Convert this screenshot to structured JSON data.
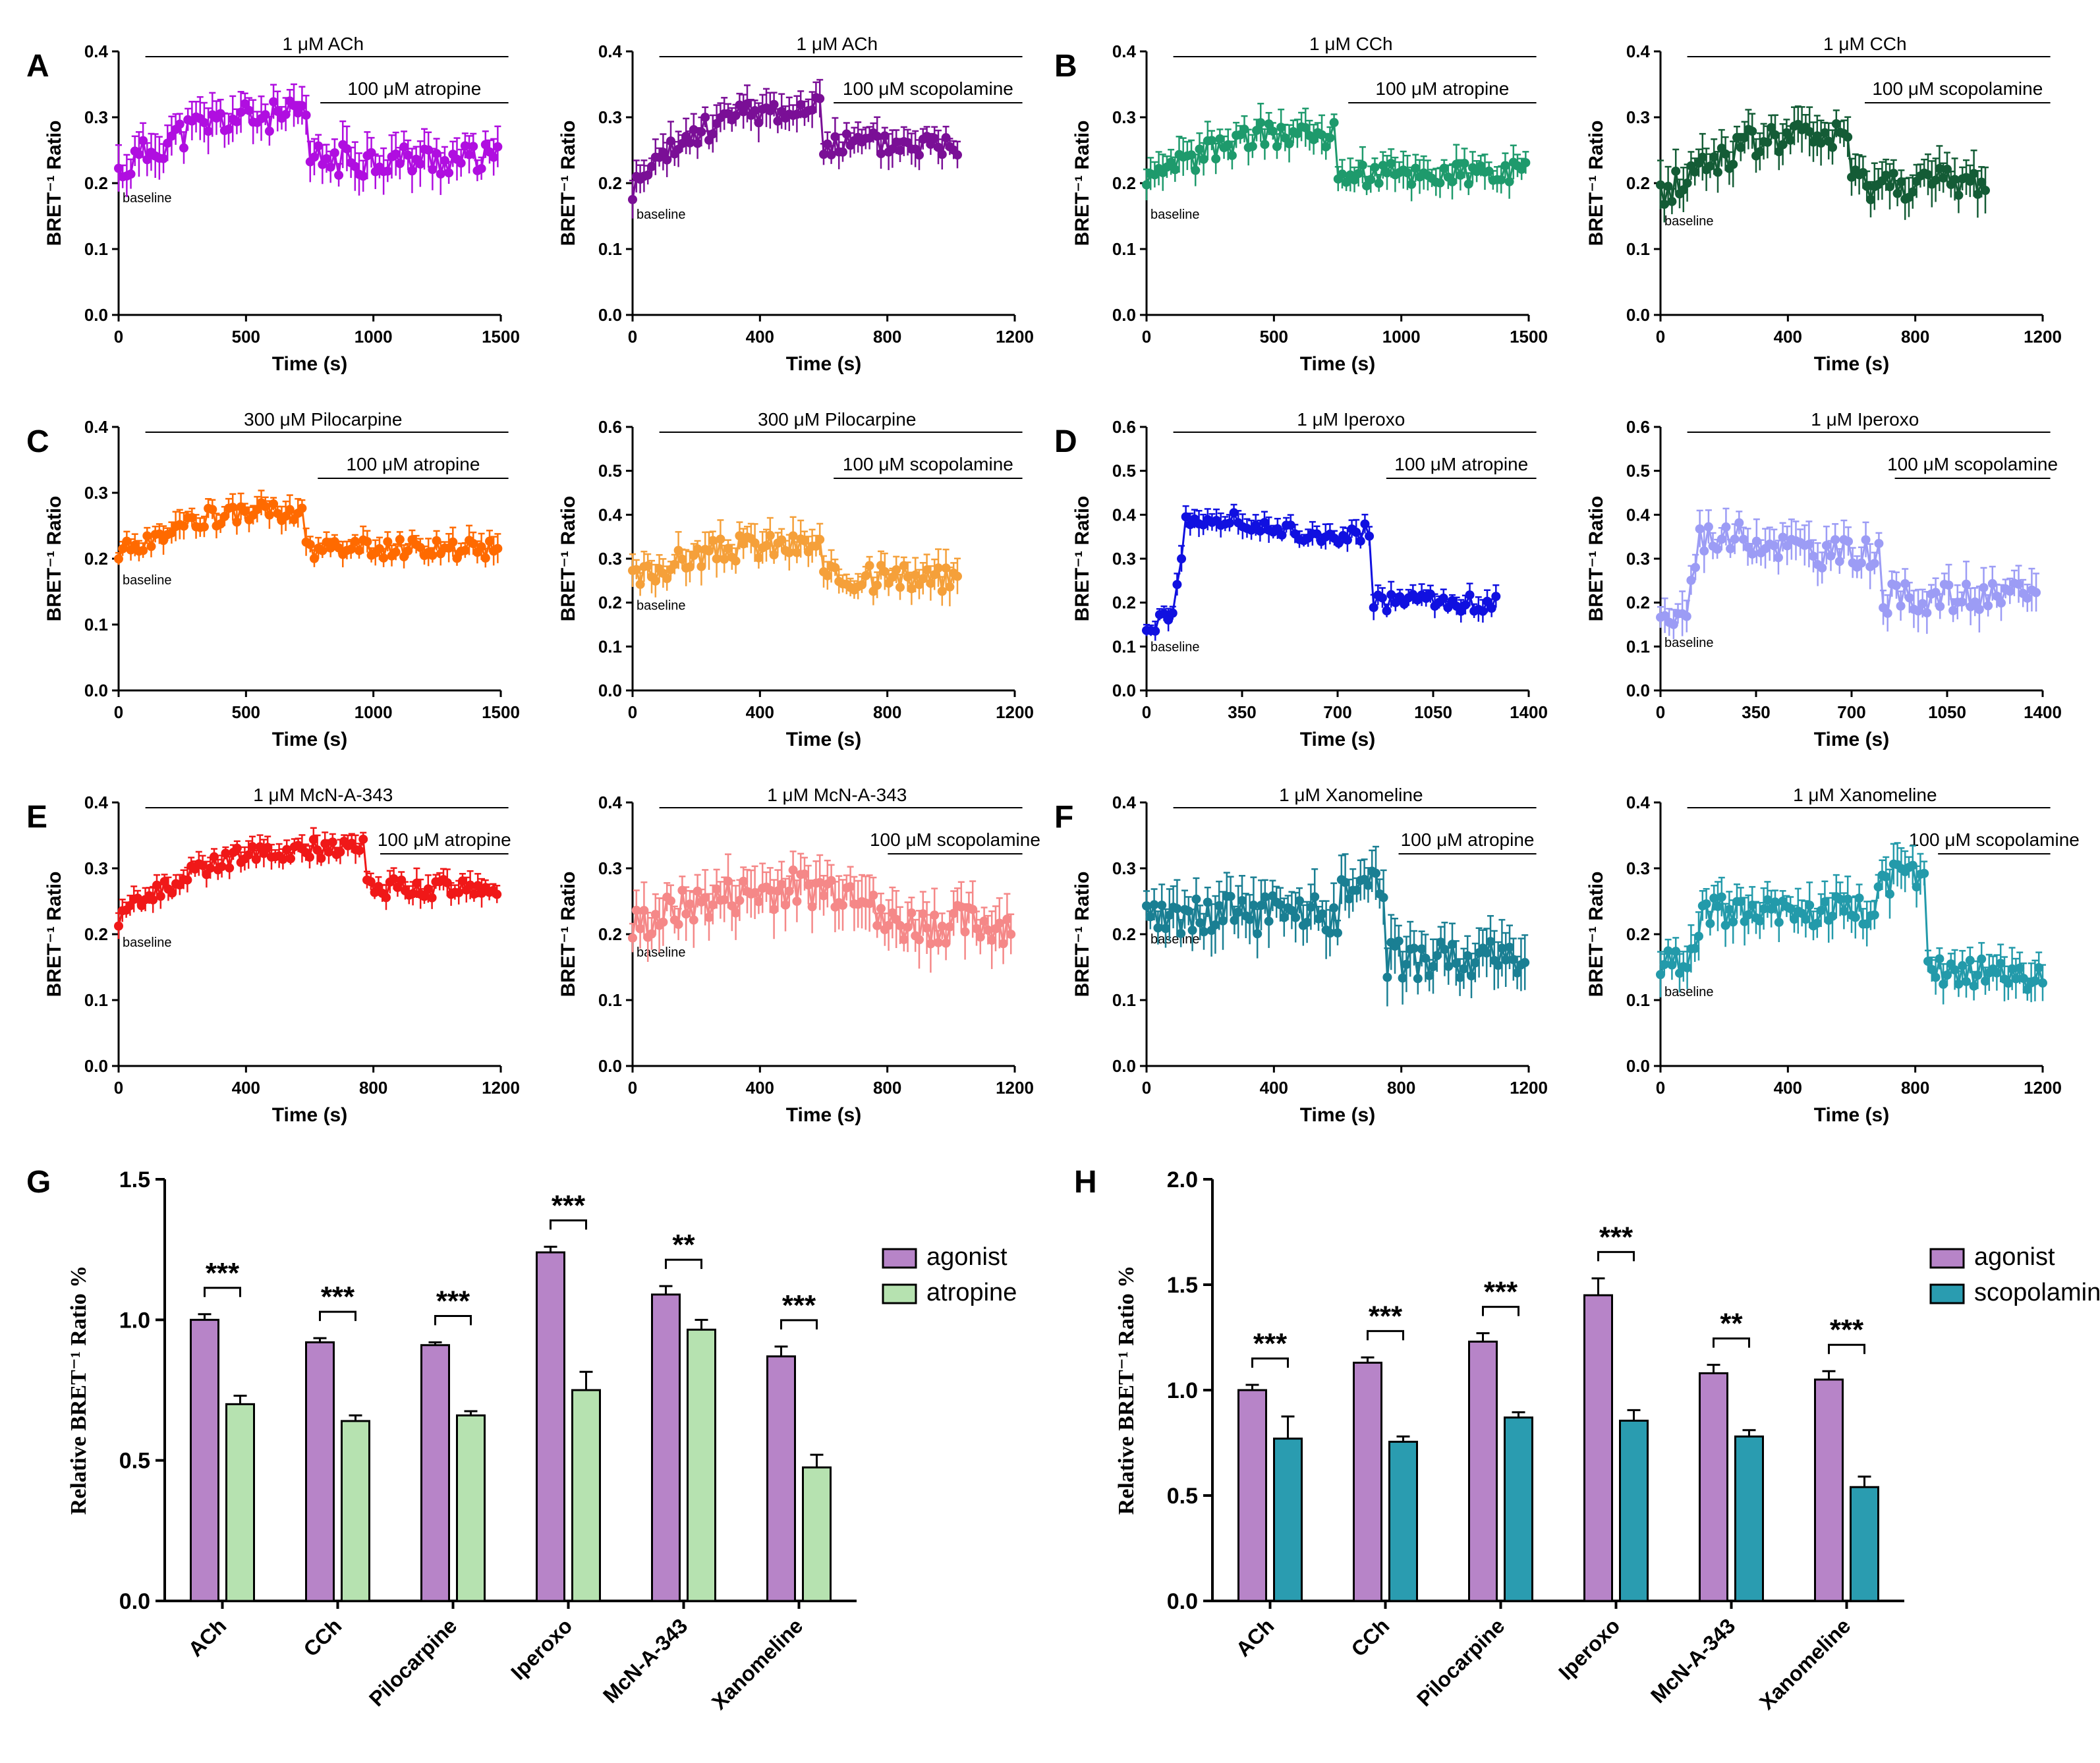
{
  "figure": {
    "letters": [
      "A",
      "B",
      "C",
      "D",
      "E",
      "F",
      "G",
      "H"
    ],
    "ylabel_time": "BRET⁻¹ Ratio",
    "xlabel_time": "Time (s)",
    "baseline_label": "baseline"
  },
  "chart_data": [
    {
      "id": "A1",
      "type": "line",
      "letter": "A",
      "color": "#b00ee0",
      "xlim": [
        0,
        1500
      ],
      "xticks": [
        0,
        500,
        1000,
        1500
      ],
      "ylim": [
        0,
        0.4
      ],
      "yticks": [
        0.0,
        0.1,
        0.2,
        0.3,
        0.4
      ],
      "agonist_label": "1 μM ACh",
      "antagonist_label": "100 μM atropine",
      "xlabel": "Time (s)",
      "ylabel": "BRET⁻¹ Ratio",
      "baseline": 0.215,
      "plateau": 0.3,
      "after": 0.235,
      "switch": 740,
      "end": 1490,
      "onset": "slow",
      "noise": 0.025
    },
    {
      "id": "A2",
      "type": "line",
      "letter": "",
      "color": "#7a0f96",
      "xlim": [
        0,
        1200
      ],
      "xticks": [
        0,
        400,
        800,
        1200
      ],
      "ylim": [
        0,
        0.4
      ],
      "yticks": [
        0.0,
        0.1,
        0.2,
        0.3,
        0.4
      ],
      "agonist_label": "1 μM ACh",
      "antagonist_label": "100 μM scopolamine",
      "xlabel": "Time (s)",
      "ylabel": "BRET⁻¹ Ratio",
      "baseline": 0.19,
      "plateau": 0.31,
      "after": 0.26,
      "switch": 590,
      "end": 1020,
      "onset": "slow",
      "noise": 0.02
    },
    {
      "id": "B1",
      "type": "line",
      "letter": "B",
      "color": "#1e9a6c",
      "xlim": [
        0,
        1500
      ],
      "xticks": [
        0,
        500,
        1000,
        1500
      ],
      "ylim": [
        0,
        0.4
      ],
      "yticks": [
        0.0,
        0.1,
        0.2,
        0.3,
        0.4
      ],
      "agonist_label": "1 μM CCh",
      "antagonist_label": "100 μM atropine",
      "xlabel": "Time (s)",
      "ylabel": "BRET⁻¹ Ratio",
      "baseline": 0.19,
      "plateau": 0.275,
      "after": 0.215,
      "switch": 740,
      "end": 1490,
      "onset": "slow",
      "noise": 0.02
    },
    {
      "id": "B2",
      "type": "line",
      "letter": "",
      "color": "#145c36",
      "xlim": [
        0,
        1200
      ],
      "xticks": [
        0,
        400,
        800,
        1200
      ],
      "ylim": [
        0,
        0.4
      ],
      "yticks": [
        0.0,
        0.1,
        0.2,
        0.3,
        0.4
      ],
      "agonist_label": "1 μM CCh",
      "antagonist_label": "100 μM scopolamine",
      "xlabel": "Time (s)",
      "ylabel": "BRET⁻¹ Ratio",
      "baseline": 0.18,
      "plateau": 0.27,
      "after": 0.2,
      "switch": 600,
      "end": 1020,
      "onset": "slow",
      "noise": 0.025
    },
    {
      "id": "C1",
      "type": "line",
      "letter": "C",
      "color": "#ff6a00",
      "xlim": [
        0,
        1500
      ],
      "xticks": [
        0,
        500,
        1000,
        1500
      ],
      "ylim": [
        0,
        0.4
      ],
      "yticks": [
        0.0,
        0.1,
        0.2,
        0.3,
        0.4
      ],
      "agonist_label": "300 μM Pilocarpine",
      "antagonist_label": "100 μM atropine",
      "xlabel": "Time (s)",
      "ylabel": "BRET⁻¹ Ratio",
      "baseline": 0.205,
      "plateau": 0.27,
      "after": 0.215,
      "switch": 730,
      "end": 1490,
      "onset": "slow",
      "noise": 0.015
    },
    {
      "id": "C2",
      "type": "line",
      "letter": "",
      "color": "#f5a03a",
      "xlim": [
        0,
        1200
      ],
      "xticks": [
        0,
        400,
        800,
        1200
      ],
      "ylim": [
        0,
        0.6
      ],
      "yticks": [
        0.0,
        0.1,
        0.2,
        0.3,
        0.4,
        0.5,
        0.6
      ],
      "agonist_label": "300 μM  Pilocarpine",
      "antagonist_label": "100 μM scopolamine",
      "xlabel": "Time (s)",
      "ylabel": "BRET⁻¹ Ratio",
      "baseline": 0.25,
      "plateau": 0.33,
      "after": 0.255,
      "switch": 590,
      "end": 1020,
      "onset": "slow",
      "noise": 0.03
    },
    {
      "id": "D1",
      "type": "line",
      "letter": "D",
      "color": "#1010e0",
      "xlim": [
        0,
        1400
      ],
      "xticks": [
        0,
        350,
        700,
        1050,
        1400
      ],
      "ylim": [
        0,
        0.6
      ],
      "yticks": [
        0.0,
        0.1,
        0.2,
        0.3,
        0.4,
        0.5,
        0.6
      ],
      "agonist_label": "1 μM Iperoxo",
      "antagonist_label": "100 μM atropine",
      "xlabel": "Time (s)",
      "ylabel": "BRET⁻¹ Ratio",
      "baseline": 0.155,
      "plateau": 0.37,
      "after": 0.2,
      "switch": 830,
      "end": 1290,
      "onset": "fast",
      "noise": 0.02
    },
    {
      "id": "D2",
      "type": "line",
      "letter": "",
      "color": "#9c9cf5",
      "xlim": [
        0,
        1400
      ],
      "xticks": [
        0,
        350,
        700,
        1050,
        1400
      ],
      "ylim": [
        0,
        0.6
      ],
      "yticks": [
        0.0,
        0.1,
        0.2,
        0.3,
        0.4,
        0.5,
        0.6
      ],
      "agonist_label": "1 μM Iperoxo",
      "antagonist_label": "100 μM scopolamine",
      "xlabel": "Time (s)",
      "ylabel": "BRET⁻¹ Ratio",
      "baseline": 0.165,
      "plateau": 0.33,
      "after": 0.21,
      "switch": 810,
      "end": 1380,
      "onset": "fast",
      "noise": 0.035
    },
    {
      "id": "E1",
      "type": "line",
      "letter": "E",
      "color": "#f01818",
      "xlim": [
        0,
        1200
      ],
      "xticks": [
        0,
        400,
        800,
        1200
      ],
      "ylim": [
        0,
        0.4
      ],
      "yticks": [
        0.0,
        0.1,
        0.2,
        0.3,
        0.4
      ],
      "agonist_label": "1 μM McN-A-343",
      "antagonist_label": "100 μM atropine",
      "xlabel": "Time (s)",
      "ylabel": "BRET⁻¹ Ratio",
      "baseline": 0.225,
      "plateau": 0.33,
      "after": 0.27,
      "switch": 780,
      "end": 1190,
      "onset": "slow",
      "noise": 0.015
    },
    {
      "id": "E2",
      "type": "line",
      "letter": "",
      "color": "#f58888",
      "xlim": [
        0,
        1200
      ],
      "xticks": [
        0,
        400,
        800,
        1200
      ],
      "ylim": [
        0,
        0.4
      ],
      "yticks": [
        0.0,
        0.1,
        0.2,
        0.3,
        0.4
      ],
      "agonist_label": "1 μM McN-A-343",
      "antagonist_label": "100 μM scopolamine",
      "xlabel": "Time (s)",
      "ylabel": "BRET⁻¹ Ratio",
      "baseline": 0.21,
      "plateau": 0.27,
      "after": 0.215,
      "switch": 760,
      "end": 1190,
      "onset": "slow",
      "noise": 0.03
    },
    {
      "id": "F1",
      "type": "line",
      "letter": "F",
      "color": "#1a7f93",
      "xlim": [
        0,
        1200
      ],
      "xticks": [
        0,
        400,
        800,
        1200
      ],
      "ylim": [
        0,
        0.4
      ],
      "yticks": [
        0.0,
        0.1,
        0.2,
        0.3,
        0.4
      ],
      "agonist_label": "1 μM Xanomeline",
      "antagonist_label": "100 μM atropine",
      "xlabel": "Time (s)",
      "ylabel": "BRET⁻¹ Ratio",
      "baseline": 0.23,
      "plateau": 0.23,
      "after": 0.16,
      "switch": 750,
      "end": 1190,
      "onset": "none",
      "noise": 0.03
    },
    {
      "id": "F2",
      "type": "line",
      "letter": "",
      "color": "#239aaa",
      "xlim": [
        0,
        1200
      ],
      "xticks": [
        0,
        400,
        800,
        1200
      ],
      "ylim": [
        0,
        0.4
      ],
      "yticks": [
        0.0,
        0.1,
        0.2,
        0.3,
        0.4
      ],
      "agonist_label": "1 μM Xanomeline",
      "antagonist_label": "100 μM scopolamine",
      "xlabel": "Time (s)",
      "ylabel": "BRET⁻¹ Ratio",
      "baseline": 0.15,
      "plateau": 0.235,
      "after": 0.14,
      "switch": 830,
      "end": 1200,
      "onset": "fast",
      "noise": 0.025
    },
    {
      "id": "G",
      "type": "bar",
      "letter": "G",
      "ylabel": "Relative BRET⁻¹ Ratio %",
      "ylim": [
        0,
        1.5
      ],
      "yticks": [
        0.0,
        0.5,
        1.0,
        1.5
      ],
      "categories": [
        "ACh",
        "CCh",
        "Pilocarpine",
        "Iperoxo",
        "McN-A-343",
        "Xanomeline"
      ],
      "series": [
        {
          "name": "agonist",
          "color": "#b784c8",
          "values": [
            1.0,
            0.92,
            0.91,
            1.24,
            1.09,
            0.87
          ],
          "errors": [
            0.02,
            0.015,
            0.01,
            0.02,
            0.03,
            0.035
          ]
        },
        {
          "name": "atropine",
          "color": "#b6e2b0",
          "values": [
            0.7,
            0.64,
            0.66,
            0.75,
            0.965,
            0.475
          ],
          "errors": [
            0.03,
            0.02,
            0.015,
            0.065,
            0.035,
            0.045
          ]
        }
      ],
      "significance": [
        "***",
        "***",
        "***",
        "***",
        "**",
        "***"
      ]
    },
    {
      "id": "H",
      "type": "bar",
      "letter": "H",
      "ylabel": "Relative BRET⁻¹ Ratio %",
      "ylim": [
        0,
        2.0
      ],
      "yticks": [
        0.0,
        0.5,
        1.0,
        1.5,
        2.0
      ],
      "categories": [
        "ACh",
        "CCh",
        "Pilocarpine",
        "Iperoxo",
        "McN-A-343",
        "Xanomeline"
      ],
      "series": [
        {
          "name": "agonist",
          "color": "#b784c8",
          "values": [
            1.0,
            1.13,
            1.23,
            1.45,
            1.08,
            1.05
          ],
          "errors": [
            0.025,
            0.025,
            0.04,
            0.08,
            0.04,
            0.04
          ]
        },
        {
          "name": "scopolamine",
          "color": "#2a9cb0",
          "values": [
            0.77,
            0.755,
            0.87,
            0.855,
            0.78,
            0.54
          ],
          "errors": [
            0.105,
            0.025,
            0.025,
            0.05,
            0.03,
            0.05
          ]
        }
      ],
      "significance": [
        "***",
        "***",
        "***",
        "***",
        "**",
        "***"
      ]
    }
  ]
}
